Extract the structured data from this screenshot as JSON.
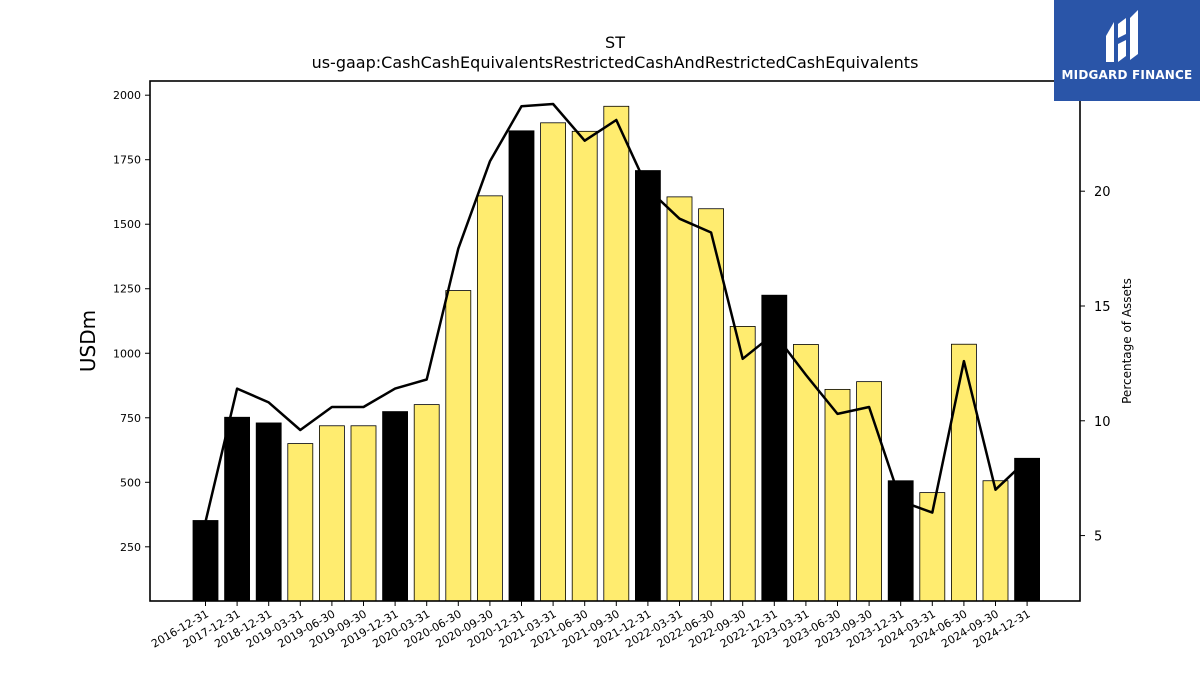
{
  "chart_data": {
    "type": "bar",
    "title": "ST",
    "subtitle": "us-gaap:CashCashEquivalentsRestrictedCashAndRestrictedCashEquivalents",
    "ylabel": "USDm",
    "y2label": "Percentage of Assets",
    "ylim": [
      40,
      2055
    ],
    "y2lim": [
      2.15,
      24.8
    ],
    "yticks": [
      250,
      500,
      750,
      1000,
      1250,
      1500,
      1750,
      2000
    ],
    "y2ticks": [
      5,
      10,
      15,
      20
    ],
    "categories": [
      "2016-12-31",
      "2017-12-31",
      "2018-12-31",
      "2019-03-31",
      "2019-06-30",
      "2019-09-30",
      "2019-12-31",
      "2020-03-31",
      "2020-06-30",
      "2020-09-30",
      "2020-12-31",
      "2021-03-31",
      "2021-06-30",
      "2021-09-30",
      "2021-12-31",
      "2022-03-31",
      "2022-06-30",
      "2022-09-30",
      "2022-12-31",
      "2023-03-31",
      "2023-06-30",
      "2023-09-30",
      "2023-12-31",
      "2024-03-31",
      "2024-06-30",
      "2024-09-30",
      "2024-12-31"
    ],
    "values": [
      352,
      752,
      730,
      650,
      719,
      719,
      774,
      801,
      1243,
      1610,
      1862,
      1893,
      1860,
      1957,
      1708,
      1606,
      1560,
      1104,
      1225,
      1034,
      860,
      890,
      506,
      460,
      1035,
      506,
      593
    ],
    "fiscal_year_end": [
      true,
      true,
      true,
      false,
      false,
      false,
      true,
      false,
      false,
      false,
      true,
      false,
      false,
      false,
      true,
      false,
      false,
      false,
      true,
      false,
      false,
      false,
      true,
      false,
      false,
      false,
      true
    ],
    "pct_of_assets": [
      5.6,
      11.4,
      10.8,
      9.6,
      10.6,
      10.6,
      11.4,
      11.8,
      17.5,
      21.3,
      23.7,
      23.8,
      22.2,
      23.1,
      20.1,
      18.8,
      18.2,
      12.7,
      13.8,
      12.0,
      10.3,
      10.6,
      6.5,
      6.0,
      12.6,
      7.0,
      8.3
    ],
    "colors": {
      "fiscal_year_bar": "#000000",
      "interim_bar": "#ffec6f",
      "bar_edge": "#000000",
      "line": "#000000"
    },
    "grid": false,
    "legend": "none"
  },
  "logo": {
    "brand": "MIDGARD FINANCE",
    "background": "#2a55a8"
  }
}
